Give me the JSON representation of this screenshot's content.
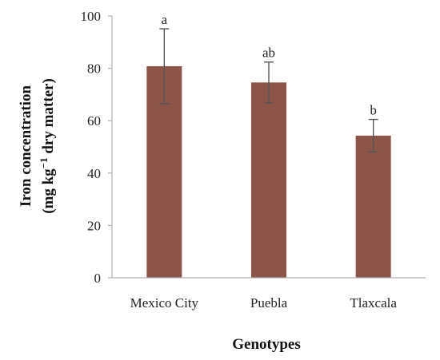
{
  "chart_data": {
    "type": "bar",
    "categories": [
      "Mexico City",
      "Puebla",
      "Tlaxcala"
    ],
    "values": [
      80.8,
      74.6,
      54.3
    ],
    "error": [
      14.3,
      7.8,
      6.2
    ],
    "significance": [
      "a",
      "ab",
      "b"
    ],
    "xlabel": "Genotypes",
    "ylabel_line1": "Iron concentration",
    "ylabel_line2_pre": "(mg kg",
    "ylabel_line2_sup": "−1",
    "ylabel_line2_post": " dry matter)",
    "ylim": [
      0,
      100
    ],
    "yticks": [
      0,
      20,
      40,
      60,
      80,
      100
    ],
    "grid": false,
    "bar_color": "#8d5548",
    "error_color": "#555555",
    "axis_color": "#b0b0b0"
  }
}
